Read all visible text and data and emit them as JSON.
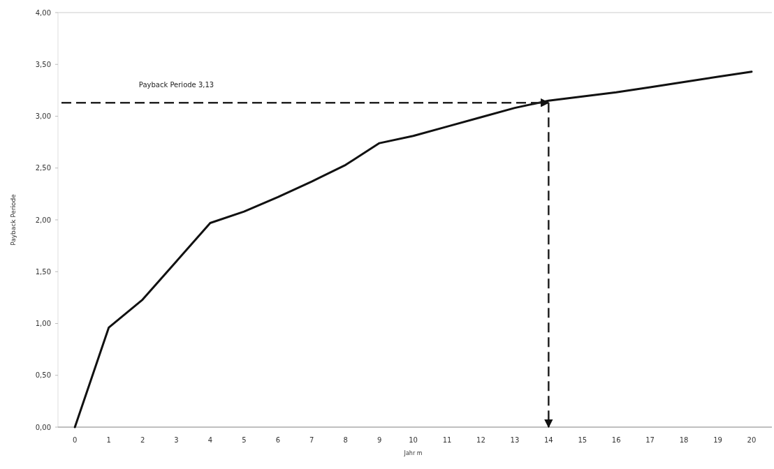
{
  "chart_data": {
    "type": "line",
    "xlabel": "Jahr m",
    "ylabel": "Payback Periode",
    "x": [
      0,
      1,
      2,
      3,
      4,
      5,
      6,
      7,
      8,
      9,
      10,
      11,
      12,
      13,
      14,
      15,
      16,
      17,
      18,
      19,
      20
    ],
    "series": [
      {
        "color": "#111111",
        "values": [
          0,
          0.96,
          1.23,
          1.6,
          1.97,
          2.08,
          2.22,
          2.37,
          2.53,
          2.74,
          2.81,
          2.9,
          2.99,
          3.08,
          3.15,
          3.19,
          3.23,
          3.28,
          3.33,
          3.38,
          3.43
        ]
      }
    ],
    "xlim": [
      -0.5,
      20.6
    ],
    "xticks": [
      0,
      1,
      2,
      3,
      4,
      5,
      6,
      7,
      8,
      9,
      10,
      11,
      12,
      13,
      14,
      15,
      16,
      17,
      18,
      19,
      20
    ],
    "ylim": [
      0,
      4
    ],
    "yticks": [
      {
        "value": 0,
        "label": "0,00"
      },
      {
        "value": 0.5,
        "label": "0,50"
      },
      {
        "value": 1,
        "label": "1,00"
      },
      {
        "value": 1.5,
        "label": "1,50"
      },
      {
        "value": 2,
        "label": "2,00"
      },
      {
        "value": 2.5,
        "label": "2,50"
      },
      {
        "value": 3,
        "label": "3,00"
      },
      {
        "value": 3.5,
        "label": "3,50"
      },
      {
        "value": 4,
        "label": "4,00"
      }
    ],
    "ref_lines": [
      {
        "axis": "y",
        "value": 3.13,
        "label": "Payback Periode 3,13",
        "color": "#222222",
        "line_style": "dashed"
      },
      {
        "axis": "x",
        "value": 14,
        "color": "#222222",
        "line_style": "dashed"
      }
    ],
    "grid": false,
    "marker": "none",
    "line_style": "solid"
  }
}
